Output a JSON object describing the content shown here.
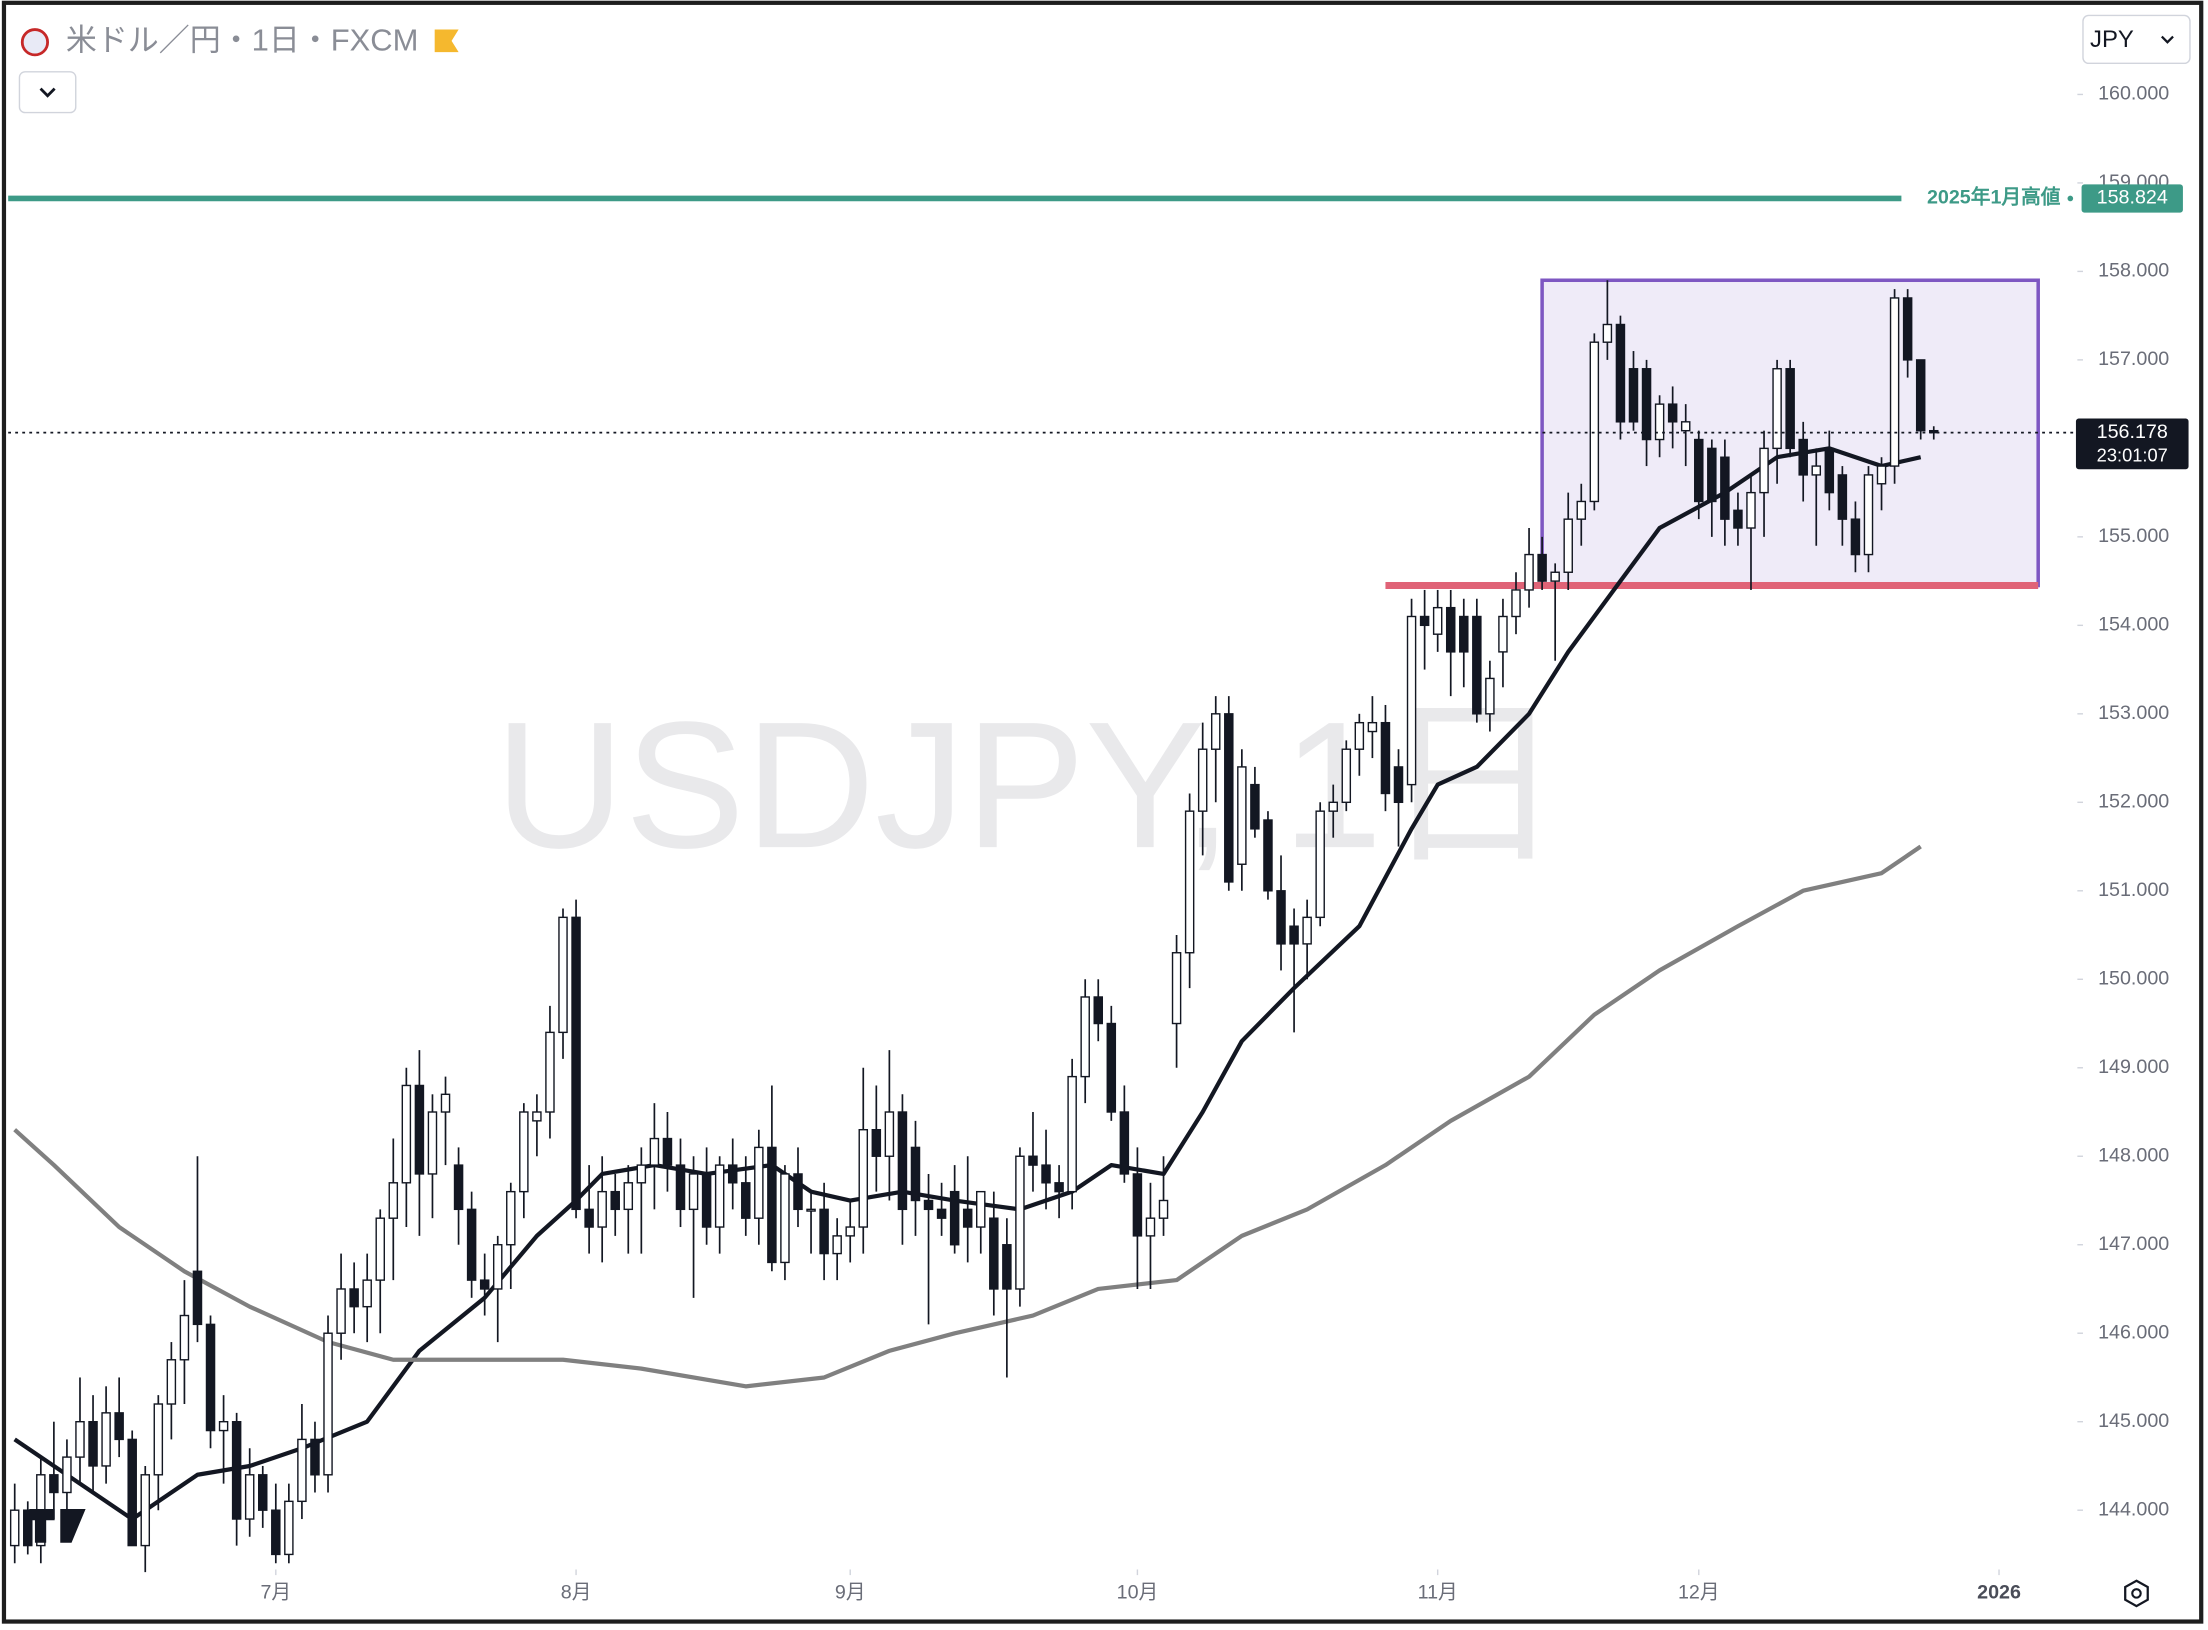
{
  "header": {
    "title": "米ドル／円・1日・FXCM",
    "currency": "JPY"
  },
  "chart_data": {
    "type": "candlestick",
    "watermark": "USDJPY, 1日",
    "up_color": "#ffffff",
    "down_color": "#131722",
    "ohlc": [
      [
        143.6,
        144.3,
        143.4,
        144.0
      ],
      [
        144.0,
        144.1,
        143.5,
        143.6
      ],
      [
        143.6,
        144.6,
        143.4,
        144.4
      ],
      [
        144.4,
        145.0,
        143.9,
        144.2
      ],
      [
        144.2,
        144.8,
        143.8,
        144.6
      ],
      [
        144.6,
        145.5,
        144.3,
        145.0
      ],
      [
        145.0,
        145.3,
        144.2,
        144.5
      ],
      [
        144.5,
        145.4,
        144.3,
        145.1
      ],
      [
        145.1,
        145.5,
        144.6,
        144.8
      ],
      [
        144.8,
        144.9,
        143.6,
        143.6
      ],
      [
        143.6,
        144.5,
        143.3,
        144.4
      ],
      [
        144.4,
        145.3,
        144.0,
        145.2
      ],
      [
        145.2,
        145.9,
        144.8,
        145.7
      ],
      [
        145.7,
        146.6,
        145.2,
        146.2
      ],
      [
        146.7,
        148.0,
        145.9,
        146.1
      ],
      [
        146.1,
        146.2,
        144.7,
        144.9
      ],
      [
        144.9,
        145.3,
        144.3,
        145.0
      ],
      [
        145.0,
        145.1,
        143.6,
        143.9
      ],
      [
        143.9,
        144.7,
        143.7,
        144.4
      ],
      [
        144.4,
        144.5,
        143.8,
        144.0
      ],
      [
        144.0,
        144.3,
        143.4,
        143.5
      ],
      [
        143.5,
        144.3,
        143.4,
        144.1
      ],
      [
        144.1,
        145.2,
        143.9,
        144.8
      ],
      [
        144.8,
        145.0,
        144.2,
        144.4
      ],
      [
        144.4,
        146.2,
        144.2,
        146.0
      ],
      [
        146.0,
        146.9,
        145.7,
        146.5
      ],
      [
        146.5,
        146.8,
        146.0,
        146.3
      ],
      [
        146.3,
        146.9,
        145.9,
        146.6
      ],
      [
        146.6,
        147.4,
        146.0,
        147.3
      ],
      [
        147.3,
        148.2,
        146.6,
        147.7
      ],
      [
        147.7,
        149.0,
        147.2,
        148.8
      ],
      [
        148.8,
        149.2,
        147.1,
        147.8
      ],
      [
        147.8,
        148.7,
        147.3,
        148.5
      ],
      [
        148.5,
        148.9,
        147.9,
        148.7
      ],
      [
        147.9,
        148.1,
        147.0,
        147.4
      ],
      [
        147.4,
        147.6,
        146.4,
        146.6
      ],
      [
        146.6,
        146.9,
        146.2,
        146.5
      ],
      [
        146.5,
        147.1,
        145.9,
        147.0
      ],
      [
        147.0,
        147.7,
        146.5,
        147.6
      ],
      [
        147.6,
        148.6,
        147.3,
        148.5
      ],
      [
        148.4,
        148.7,
        148.0,
        148.5
      ],
      [
        148.5,
        149.7,
        148.2,
        149.4
      ],
      [
        149.4,
        150.8,
        149.1,
        150.7
      ],
      [
        150.7,
        150.9,
        147.3,
        147.4
      ],
      [
        147.4,
        147.9,
        146.9,
        147.2
      ],
      [
        147.2,
        148.0,
        146.8,
        147.6
      ],
      [
        147.6,
        147.8,
        147.1,
        147.4
      ],
      [
        147.4,
        147.9,
        146.9,
        147.7
      ],
      [
        147.7,
        148.1,
        146.9,
        147.9
      ],
      [
        147.9,
        148.6,
        147.4,
        148.2
      ],
      [
        148.2,
        148.5,
        147.6,
        147.9
      ],
      [
        147.9,
        148.2,
        147.2,
        147.4
      ],
      [
        147.4,
        148.0,
        146.4,
        147.8
      ],
      [
        147.8,
        148.1,
        147.0,
        147.2
      ],
      [
        147.2,
        148.0,
        146.9,
        147.9
      ],
      [
        147.9,
        148.2,
        147.4,
        147.7
      ],
      [
        147.7,
        148.0,
        147.1,
        147.3
      ],
      [
        147.3,
        148.3,
        147.0,
        148.1
      ],
      [
        148.1,
        148.8,
        146.7,
        146.8
      ],
      [
        146.8,
        147.9,
        146.6,
        147.8
      ],
      [
        147.8,
        148.1,
        147.2,
        147.4
      ],
      [
        147.4,
        147.6,
        146.9,
        147.4
      ],
      [
        147.4,
        147.7,
        146.6,
        146.9
      ],
      [
        146.9,
        147.3,
        146.6,
        147.1
      ],
      [
        147.1,
        147.5,
        146.8,
        147.2
      ],
      [
        147.2,
        149.0,
        146.9,
        148.3
      ],
      [
        148.3,
        148.8,
        147.6,
        148.0
      ],
      [
        148.0,
        149.2,
        147.5,
        148.5
      ],
      [
        148.5,
        148.7,
        147.0,
        147.4
      ],
      [
        148.1,
        148.4,
        147.1,
        147.5
      ],
      [
        147.5,
        147.8,
        146.1,
        147.4
      ],
      [
        147.4,
        147.7,
        147.1,
        147.3
      ],
      [
        147.6,
        147.9,
        146.9,
        147.0
      ],
      [
        147.4,
        148.0,
        146.8,
        147.2
      ],
      [
        147.2,
        147.6,
        146.9,
        147.6
      ],
      [
        147.3,
        147.6,
        146.2,
        146.5
      ],
      [
        147.0,
        147.3,
        145.5,
        146.5
      ],
      [
        146.5,
        148.1,
        146.3,
        148.0
      ],
      [
        148.0,
        148.5,
        147.6,
        147.9
      ],
      [
        147.9,
        148.3,
        147.4,
        147.7
      ],
      [
        147.7,
        147.9,
        147.3,
        147.6
      ],
      [
        147.6,
        149.1,
        147.4,
        148.9
      ],
      [
        148.9,
        150.0,
        148.6,
        149.8
      ],
      [
        149.8,
        150.0,
        149.3,
        149.5
      ],
      [
        149.5,
        149.7,
        148.4,
        148.5
      ],
      [
        148.5,
        148.8,
        147.7,
        147.8
      ],
      [
        147.8,
        148.1,
        146.5,
        147.1
      ],
      [
        147.1,
        147.7,
        146.5,
        147.3
      ],
      [
        147.3,
        148.0,
        147.1,
        147.5
      ],
      [
        149.5,
        150.5,
        149.0,
        150.3
      ],
      [
        150.3,
        152.1,
        149.9,
        151.9
      ],
      [
        151.9,
        152.9,
        151.4,
        152.6
      ],
      [
        152.6,
        153.2,
        152.0,
        153.0
      ],
      [
        153.0,
        153.2,
        151.0,
        151.1
      ],
      [
        151.3,
        152.6,
        151.0,
        152.4
      ],
      [
        152.2,
        152.4,
        151.6,
        151.7
      ],
      [
        151.8,
        151.9,
        150.9,
        151.0
      ],
      [
        151.0,
        151.4,
        150.1,
        150.4
      ],
      [
        150.6,
        150.8,
        149.4,
        150.4
      ],
      [
        150.4,
        150.9,
        150.0,
        150.7
      ],
      [
        150.7,
        152.0,
        150.6,
        151.9
      ],
      [
        151.9,
        152.2,
        151.6,
        152.0
      ],
      [
        152.0,
        152.7,
        151.9,
        152.6
      ],
      [
        152.6,
        153.0,
        152.3,
        152.9
      ],
      [
        152.8,
        153.2,
        152.5,
        152.9
      ],
      [
        152.9,
        153.1,
        151.9,
        152.1
      ],
      [
        152.4,
        152.6,
        151.5,
        152.0
      ],
      [
        152.2,
        154.3,
        152.0,
        154.1
      ],
      [
        154.1,
        154.4,
        153.5,
        154.0
      ],
      [
        153.9,
        154.4,
        153.7,
        154.2
      ],
      [
        154.2,
        154.4,
        153.2,
        153.7
      ],
      [
        154.1,
        154.3,
        153.3,
        153.7
      ],
      [
        154.1,
        154.3,
        152.9,
        153.0
      ],
      [
        153.0,
        153.6,
        152.8,
        153.4
      ],
      [
        153.7,
        154.3,
        153.3,
        154.1
      ],
      [
        154.1,
        154.6,
        153.9,
        154.4
      ],
      [
        154.4,
        155.1,
        154.2,
        154.8
      ],
      [
        154.8,
        155.0,
        154.4,
        154.5
      ],
      [
        154.5,
        154.7,
        153.6,
        154.6
      ],
      [
        154.6,
        155.5,
        154.4,
        155.2
      ],
      [
        155.2,
        155.6,
        154.9,
        155.4
      ],
      [
        155.4,
        157.3,
        155.3,
        157.2
      ],
      [
        157.2,
        157.9,
        157.0,
        157.4
      ],
      [
        157.4,
        157.5,
        156.1,
        156.3
      ],
      [
        156.9,
        157.1,
        156.2,
        156.3
      ],
      [
        156.9,
        157.0,
        155.8,
        156.1
      ],
      [
        156.1,
        156.6,
        155.9,
        156.5
      ],
      [
        156.5,
        156.7,
        156.0,
        156.3
      ],
      [
        156.2,
        156.5,
        155.8,
        156.3
      ],
      [
        156.1,
        156.2,
        155.2,
        155.4
      ],
      [
        156.0,
        156.1,
        155.0,
        155.4
      ],
      [
        155.9,
        156.1,
        154.9,
        155.2
      ],
      [
        155.3,
        155.5,
        154.9,
        155.1
      ],
      [
        155.1,
        155.7,
        154.4,
        155.5
      ],
      [
        155.5,
        156.2,
        155.0,
        156.0
      ],
      [
        156.0,
        157.0,
        155.6,
        156.9
      ],
      [
        156.9,
        157.0,
        155.9,
        156.0
      ],
      [
        156.1,
        156.3,
        155.4,
        155.7
      ],
      [
        155.7,
        156.0,
        154.9,
        155.8
      ],
      [
        156.0,
        156.2,
        155.3,
        155.5
      ],
      [
        155.7,
        155.8,
        154.9,
        155.2
      ],
      [
        155.2,
        155.4,
        154.6,
        154.8
      ],
      [
        154.8,
        155.8,
        154.6,
        155.7
      ],
      [
        155.6,
        155.9,
        155.3,
        155.8
      ],
      [
        155.8,
        157.8,
        155.6,
        157.7
      ],
      [
        157.7,
        157.8,
        156.8,
        157.0
      ],
      [
        157.0,
        157.0,
        156.1,
        156.2
      ],
      [
        156.2,
        156.25,
        156.1,
        156.178
      ]
    ],
    "lines": [
      {
        "color": "#131722",
        "width": 3,
        "x": [
          0,
          9,
          14,
          18,
          22,
          27,
          31,
          36,
          40,
          43,
          45,
          49,
          53,
          58,
          61,
          64,
          68,
          72,
          77,
          81,
          84,
          88,
          91,
          94,
          98,
          103,
          107,
          109,
          112,
          116,
          119,
          123,
          126,
          131,
          135,
          139,
          143,
          146
        ],
        "values": [
          144.8,
          143.9,
          144.4,
          144.5,
          144.7,
          145.0,
          145.8,
          146.4,
          147.1,
          147.5,
          147.8,
          147.9,
          147.8,
          147.9,
          147.6,
          147.5,
          147.6,
          147.5,
          147.4,
          147.6,
          147.9,
          147.8,
          148.5,
          149.3,
          149.9,
          150.6,
          151.7,
          152.2,
          152.4,
          153.0,
          153.7,
          154.5,
          155.1,
          155.5,
          155.9,
          156.0,
          155.8,
          155.9
        ]
      },
      {
        "color": "#808080",
        "width": 3,
        "x": [
          0,
          3,
          8,
          13,
          18,
          24,
          29,
          37,
          42,
          48,
          56,
          62,
          67,
          72,
          78,
          83,
          89,
          94,
          99,
          105,
          110,
          116,
          121,
          126,
          132,
          137,
          143,
          146
        ],
        "values": [
          148.3,
          147.9,
          147.2,
          146.7,
          146.3,
          145.9,
          145.7,
          145.7,
          145.7,
          145.6,
          145.4,
          145.5,
          145.8,
          146.0,
          146.2,
          146.5,
          146.6,
          147.1,
          147.4,
          147.9,
          148.4,
          148.9,
          149.6,
          150.1,
          150.6,
          151.0,
          151.2,
          151.5
        ]
      }
    ],
    "last_price": 156.178,
    "countdown": "23:01:07",
    "hline": {
      "value": 158.824,
      "label": "2025年1月高値",
      "color": "#3d9a87"
    },
    "support": {
      "value": 154.45,
      "x": [
        105,
        155
      ],
      "color": "#e06377"
    },
    "box": {
      "x": [
        117,
        155
      ],
      "y": [
        154.45,
        157.9
      ],
      "color": "#7e57c2"
    },
    "xlim": [
      -0.5,
      158
    ],
    "xticks": [
      {
        "value": 20,
        "label": "7月"
      },
      {
        "value": 43,
        "label": "8月"
      },
      {
        "value": 64,
        "label": "9月"
      },
      {
        "value": 86,
        "label": "10月"
      },
      {
        "value": 109,
        "label": "11月"
      },
      {
        "value": 129,
        "label": "12月"
      },
      {
        "value": 152,
        "label": "2026"
      }
    ],
    "ylim": [
      143.33,
      160.94
    ],
    "yticks": [
      {
        "value": 144,
        "label": "144.000"
      },
      {
        "value": 145,
        "label": "145.000"
      },
      {
        "value": 146,
        "label": "146.000"
      },
      {
        "value": 147,
        "label": "147.000"
      },
      {
        "value": 148,
        "label": "148.000"
      },
      {
        "value": 149,
        "label": "149.000"
      },
      {
        "value": 150,
        "label": "150.000"
      },
      {
        "value": 151,
        "label": "151.000"
      },
      {
        "value": 152,
        "label": "152.000"
      },
      {
        "value": 153,
        "label": "153.000"
      },
      {
        "value": 154,
        "label": "154.000"
      },
      {
        "value": 155,
        "label": "155.000"
      },
      {
        "value": 156,
        "label": "156.000"
      },
      {
        "value": 157,
        "label": "157.000"
      },
      {
        "value": 158,
        "label": "158.000"
      },
      {
        "value": 159,
        "label": "159.000"
      },
      {
        "value": 160,
        "label": "160.000"
      }
    ]
  }
}
